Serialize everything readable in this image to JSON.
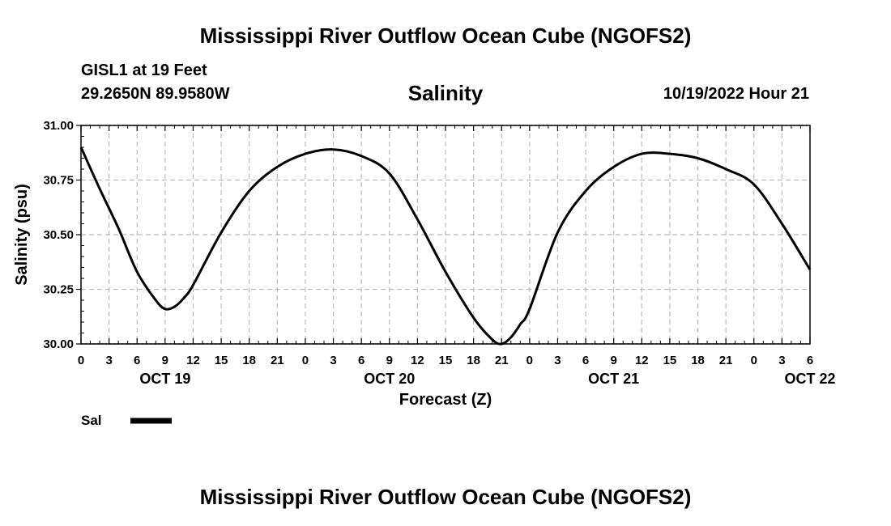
{
  "header": {
    "title": "Mississippi River Outflow Ocean Cube (NGOFS2)",
    "station": "GISL1 at 19 Feet",
    "coords": "29.2650N  89.9580W",
    "variable": "Salinity",
    "datetime": "10/19/2022 Hour 21"
  },
  "footer": {
    "title": "Mississippi River Outflow Ocean Cube (NGOFS2)"
  },
  "chart_data": {
    "type": "line",
    "title": "Salinity",
    "xlabel": "Forecast (Z)",
    "ylabel": "Salinity (psu)",
    "ylim": [
      30.0,
      31.0
    ],
    "y_ticks": [
      "30.00",
      "30.25",
      "30.50",
      "30.75",
      "31.00"
    ],
    "x_range_hours": [
      0,
      78
    ],
    "x_tick_labels": [
      "0",
      "3",
      "6",
      "9",
      "12",
      "15",
      "18",
      "21",
      "0",
      "3",
      "6",
      "9",
      "12",
      "15",
      "18",
      "21",
      "0",
      "3",
      "6",
      "9",
      "12",
      "15",
      "18",
      "21",
      "0",
      "3",
      "6"
    ],
    "date_labels": [
      {
        "label": "OCT 19",
        "hour": 9
      },
      {
        "label": "OCT 20",
        "hour": 33
      },
      {
        "label": "OCT 21",
        "hour": 57
      },
      {
        "label": "OCT 22",
        "hour": 78
      }
    ],
    "grid": true,
    "legend": {
      "position": "bottom-left",
      "entries": [
        {
          "name": "Sal",
          "color": "#000000"
        }
      ]
    },
    "series": [
      {
        "name": "Sal",
        "color": "#000000",
        "x": [
          0,
          2,
          4,
          6,
          8,
          9,
          10,
          11,
          12,
          15,
          18,
          21,
          24,
          27,
          30,
          33,
          36,
          39,
          42,
          44,
          45,
          46,
          47,
          48,
          51,
          54,
          57,
          60,
          63,
          66,
          69,
          72,
          75,
          78
        ],
        "values": [
          30.9,
          30.71,
          30.53,
          30.33,
          30.2,
          30.16,
          30.17,
          30.21,
          30.27,
          30.51,
          30.7,
          30.81,
          30.87,
          30.89,
          30.86,
          30.78,
          30.57,
          30.33,
          30.12,
          30.02,
          30.0,
          30.03,
          30.09,
          30.16,
          30.51,
          30.7,
          30.81,
          30.87,
          30.87,
          30.85,
          30.8,
          30.73,
          30.55,
          30.34
        ]
      }
    ]
  }
}
